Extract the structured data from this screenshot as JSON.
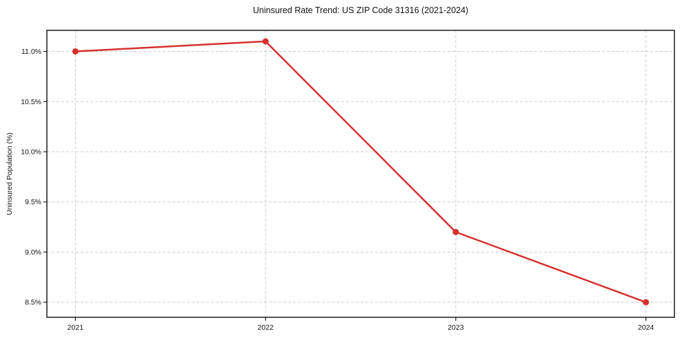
{
  "chart_data": {
    "type": "line",
    "title": "Uninsured Rate Trend: US ZIP Code 31316 (2021-2024)",
    "xlabel": "",
    "ylabel": "Uninsured Population (%)",
    "x": [
      2021,
      2022,
      2023,
      2024
    ],
    "x_tick_labels": [
      "2021",
      "2022",
      "2023",
      "2024"
    ],
    "series": [
      {
        "name": "Uninsured Population (%)",
        "values": [
          11.0,
          11.1,
          9.2,
          8.5
        ]
      }
    ],
    "y_ticks": [
      8.5,
      9.0,
      9.5,
      10.0,
      10.5,
      11.0
    ],
    "y_tick_labels": [
      "8.5%",
      "9.0%",
      "9.5%",
      "10.0%",
      "10.5%",
      "11.0%"
    ],
    "xlim": [
      2020.85,
      2024.15
    ],
    "ylim": [
      8.35,
      11.21
    ],
    "grid": true,
    "grid_style": "dashed",
    "legend": "none",
    "colors": {
      "line": "#d62f2f",
      "marker": "#d62f2f",
      "grid": "#cccccc",
      "spine": "#1a1a1a",
      "text": "#111111",
      "background": "#ffffff"
    }
  }
}
